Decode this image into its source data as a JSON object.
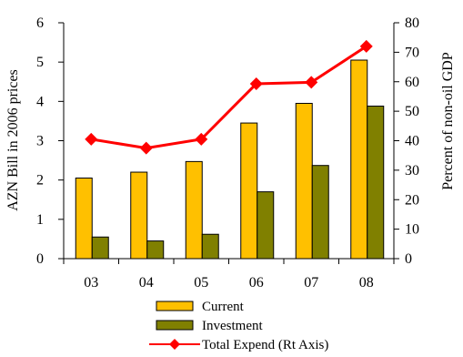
{
  "chart_data": {
    "type": "bar",
    "categories": [
      "03",
      "04",
      "05",
      "06",
      "07",
      "08"
    ],
    "series": [
      {
        "name": "Current",
        "kind": "bar",
        "axis": "left",
        "color": "#FFC000",
        "values": [
          2.05,
          2.2,
          2.47,
          3.45,
          3.95,
          5.05
        ]
      },
      {
        "name": "Investment",
        "kind": "bar",
        "axis": "left",
        "color": "#808000",
        "values": [
          0.55,
          0.45,
          0.62,
          1.7,
          2.37,
          3.88
        ]
      },
      {
        "name": "Total Expend (Rt Axis)",
        "kind": "line",
        "axis": "right",
        "color": "#FF0000",
        "marker": "diamond",
        "values": [
          40.5,
          37.5,
          40.5,
          59.3,
          59.8,
          72
        ]
      }
    ],
    "ylabel": "AZN Bill  in 2006 prices",
    "y2label": "Percent of non-oil GDP",
    "ylim": [
      0,
      6
    ],
    "y2lim": [
      0,
      80
    ],
    "yticks": [
      "0",
      "1",
      "2",
      "3",
      "4",
      "5",
      "6"
    ],
    "y2ticks": [
      "0",
      "10",
      "20",
      "30",
      "40",
      "50",
      "60",
      "70",
      "80"
    ],
    "grid": false,
    "legend_position": "bottom"
  }
}
